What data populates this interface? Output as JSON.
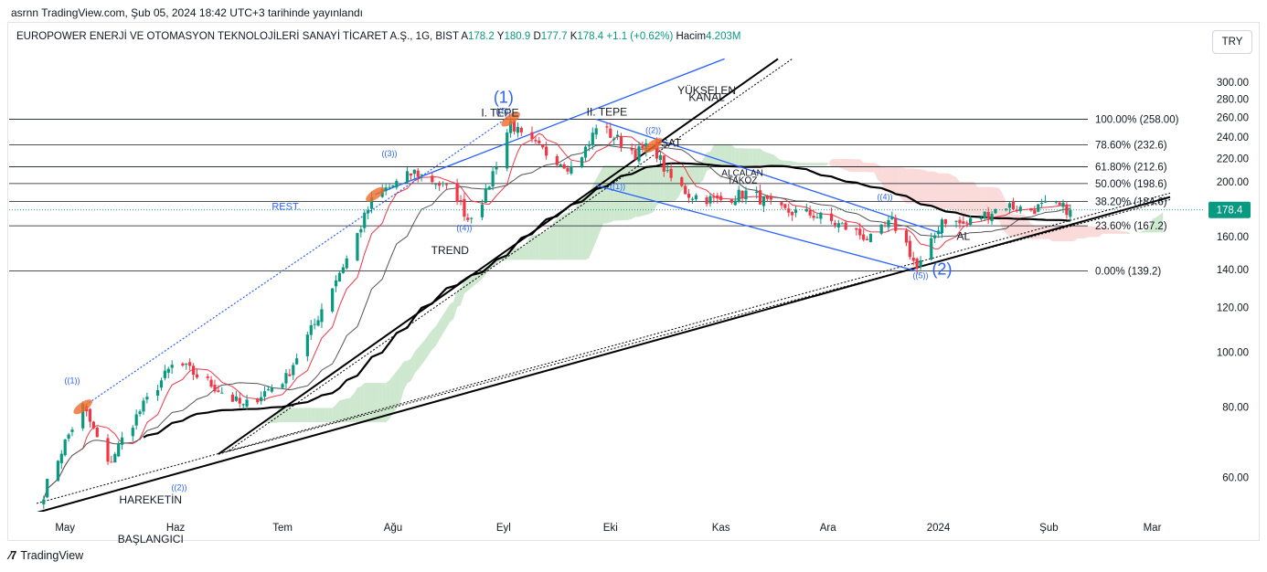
{
  "header": {
    "published": "asrnn TradingView.com, Şub 05, 2024 18:42 UTC+3 tarihinde yayınlandı"
  },
  "legend": {
    "title": "EUROPOWER ENERJİ VE OTOMASYON TEKNOLOJİLERİ SANAYİ TİCARET A.Ş., 1G, BIST",
    "o_label": "A",
    "o_value": "178.2",
    "h_label": "Y",
    "h_value": "180.9",
    "l_label": "D",
    "l_value": "177.7",
    "c_label": "K",
    "c_value": "178.4",
    "change": "+1.1 (+0.62%)",
    "vol_label": "Hacim",
    "vol_value": "4.203M"
  },
  "currency": "TRY",
  "footer": {
    "brand": "TradingView"
  },
  "colors": {
    "up": "#089981",
    "down": "#f23645",
    "blue": "#2962ff",
    "cloud_green": "#a5d6a7",
    "cloud_red": "#f8bbbb",
    "marker_orange": "#ef6c2a",
    "last_price_bg": "#089981"
  },
  "chart_data": {
    "type": "candlestick",
    "symbol": "EUROPOWER ENERJİ VE OTOMASYON TEKNOLOJİLERİ SANAYİ TİCARET A.Ş.",
    "interval": "1G",
    "ylim": [
      50,
      320
    ],
    "y_ticks": [
      "60.00",
      "80.00",
      "100.00",
      "120.00",
      "140.00",
      "160.00",
      "180.00",
      "200.00",
      "220.00",
      "240.00",
      "260.00",
      "280.00",
      "300.00"
    ],
    "x_ticks": [
      {
        "label": "May",
        "t": 0
      },
      {
        "label": "Haz",
        "t": 31
      },
      {
        "label": "Tem",
        "t": 61
      },
      {
        "label": "Ağu",
        "t": 92
      },
      {
        "label": "Eyl",
        "t": 123
      },
      {
        "label": "Eki",
        "t": 153
      },
      {
        "label": "Kas",
        "t": 184
      },
      {
        "label": "Ara",
        "t": 214
      },
      {
        "label": "2024",
        "t": 245
      },
      {
        "label": "Şub",
        "t": 276
      },
      {
        "label": "Mar",
        "t": 305
      }
    ],
    "x_domain": [
      -8,
      310
    ],
    "last_price": "178.4",
    "last_value": 178.4,
    "fib_levels": [
      {
        "label": "100.00% (258.00)",
        "value": 258.0
      },
      {
        "label": "78.60% (232.6)",
        "value": 232.6
      },
      {
        "label": "61.80% (212.6)",
        "value": 212.6
      },
      {
        "label": "50.00% (198.6)",
        "value": 198.6
      },
      {
        "label": "38.20% (184.6)",
        "value": 184.6
      },
      {
        "label": "23.60% (167.2)",
        "value": 167.2
      },
      {
        "label": "0.00% (139.2)",
        "value": 139.2
      }
    ],
    "rest_level": 178.4,
    "key_points": [
      {
        "t": -8,
        "v": 52
      },
      {
        "t": 5,
        "v": 80
      },
      {
        "t": 12,
        "v": 63
      },
      {
        "t": 31,
        "v": 96
      },
      {
        "t": 50,
        "v": 80
      },
      {
        "t": 62,
        "v": 90
      },
      {
        "t": 70,
        "v": 112
      },
      {
        "t": 80,
        "v": 150
      },
      {
        "t": 87,
        "v": 190
      },
      {
        "t": 92,
        "v": 197
      },
      {
        "t": 98,
        "v": 208
      },
      {
        "t": 104,
        "v": 200
      },
      {
        "t": 110,
        "v": 188
      },
      {
        "t": 113,
        "v": 172
      },
      {
        "t": 118,
        "v": 190
      },
      {
        "t": 122,
        "v": 225
      },
      {
        "t": 125,
        "v": 255
      },
      {
        "t": 128,
        "v": 240
      },
      {
        "t": 135,
        "v": 225
      },
      {
        "t": 142,
        "v": 212
      },
      {
        "t": 147,
        "v": 232
      },
      {
        "t": 149,
        "v": 252
      },
      {
        "t": 154,
        "v": 240
      },
      {
        "t": 160,
        "v": 225
      },
      {
        "t": 165,
        "v": 232
      },
      {
        "t": 169,
        "v": 205
      },
      {
        "t": 175,
        "v": 190
      },
      {
        "t": 183,
        "v": 185
      },
      {
        "t": 192,
        "v": 192
      },
      {
        "t": 200,
        "v": 178
      },
      {
        "t": 210,
        "v": 175
      },
      {
        "t": 220,
        "v": 165
      },
      {
        "t": 226,
        "v": 158
      },
      {
        "t": 232,
        "v": 170
      },
      {
        "t": 236,
        "v": 155
      },
      {
        "t": 239,
        "v": 140
      },
      {
        "t": 242,
        "v": 150
      },
      {
        "t": 246,
        "v": 172
      },
      {
        "t": 252,
        "v": 168
      },
      {
        "t": 258,
        "v": 175
      },
      {
        "t": 264,
        "v": 182
      },
      {
        "t": 270,
        "v": 178
      },
      {
        "t": 276,
        "v": 182
      },
      {
        "t": 282,
        "v": 178.4
      }
    ],
    "annotations": [
      {
        "text": "(1)",
        "t": 123,
        "v": 276,
        "color": "#2962ff",
        "size": 18
      },
      {
        "text": "((5))",
        "t": 123,
        "v": 264,
        "color": "#2962ff",
        "size": 9
      },
      {
        "text": "I. TEPE",
        "t": 122,
        "v": 261,
        "color": "#131722",
        "size": 12
      },
      {
        "text": "II. TEPE",
        "t": 152,
        "v": 262,
        "color": "#131722",
        "size": 12
      },
      {
        "text": "YÜKSELEN",
        "t": 180,
        "v": 286,
        "color": "#131722",
        "size": 12
      },
      {
        "text": "KANAL",
        "t": 180,
        "v": 278,
        "color": "#131722",
        "size": 12
      },
      {
        "text": "((2))",
        "t": 165,
        "v": 244,
        "color": "#2962ff",
        "size": 9
      },
      {
        "text": "SAT",
        "t": 170,
        "v": 231,
        "color": "#131722",
        "size": 12
      },
      {
        "text": "ALÇALAN",
        "t": 190,
        "v": 205,
        "color": "#131722",
        "size": 10
      },
      {
        "text": "TAKOZ",
        "t": 190,
        "v": 199,
        "color": "#131722",
        "size": 10
      },
      {
        "text": "((1))",
        "t": 155,
        "v": 194,
        "color": "#2962ff",
        "size": 9
      },
      {
        "text": "((3))",
        "t": 91,
        "v": 222,
        "color": "#2962ff",
        "size": 9
      },
      {
        "text": "REST.",
        "t": 62,
        "v": 178.4,
        "color": "#2962ff",
        "size": 11
      },
      {
        "text": "((4))",
        "t": 112,
        "v": 164,
        "color": "#2962ff",
        "size": 9
      },
      {
        "text": "TREND",
        "t": 108,
        "v": 149,
        "color": "#131722",
        "size": 12
      },
      {
        "text": "((1))",
        "t": 2,
        "v": 88,
        "color": "#2962ff",
        "size": 9
      },
      {
        "text": "((2))",
        "t": 32,
        "v": 57,
        "color": "#2962ff",
        "size": 9
      },
      {
        "text": "HAREKETİN",
        "t": 24,
        "v": 54,
        "color": "#131722",
        "size": 12
      },
      {
        "text": "BAŞLANGICI",
        "t": 24,
        "v": 46,
        "color": "#131722",
        "size": 12
      },
      {
        "text": "((4))",
        "t": 230,
        "v": 186,
        "color": "#2962ff",
        "size": 9
      },
      {
        "text": "((5))",
        "t": 240,
        "v": 135,
        "color": "#2962ff",
        "size": 9
      },
      {
        "text": "(2)",
        "t": 246,
        "v": 137,
        "color": "#2962ff",
        "size": 18
      },
      {
        "text": "AL",
        "t": 252,
        "v": 158,
        "color": "#131722",
        "size": 12
      }
    ]
  }
}
